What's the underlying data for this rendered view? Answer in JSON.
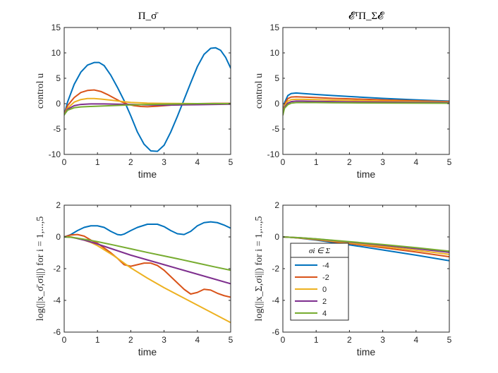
{
  "chart_data": [
    {
      "type": "line",
      "title": "Π_σ̄",
      "xlabel": "time",
      "ylabel": "control u",
      "xlim": [
        0,
        5
      ],
      "ylim": [
        -10,
        15
      ],
      "xticks": [
        0,
        1,
        2,
        3,
        4,
        5
      ],
      "yticks": [
        -10,
        -5,
        0,
        5,
        10,
        15
      ],
      "series": [
        {
          "name": "-4",
          "color": "#0072BD",
          "x": [
            0,
            0.1,
            0.3,
            0.5,
            0.7,
            0.9,
            1.05,
            1.2,
            1.4,
            1.6,
            1.8,
            2.0,
            2.2,
            2.4,
            2.6,
            2.8,
            3.0,
            3.2,
            3.4,
            3.6,
            3.8,
            4.0,
            4.2,
            4.4,
            4.55,
            4.7,
            4.85,
            5.0
          ],
          "y": [
            -2.2,
            0.3,
            3.8,
            6.2,
            7.6,
            8.1,
            8.1,
            7.5,
            5.6,
            3.2,
            0.6,
            -2.4,
            -5.6,
            -8.0,
            -9.3,
            -9.4,
            -8.2,
            -5.6,
            -2.5,
            0.8,
            4.1,
            7.3,
            9.7,
            10.9,
            11.0,
            10.5,
            9.1,
            7.0
          ]
        },
        {
          "name": "-2",
          "color": "#D95319",
          "x": [
            0,
            0.1,
            0.3,
            0.5,
            0.7,
            0.9,
            1.1,
            1.3,
            1.5,
            1.7,
            1.9,
            2.1,
            2.3,
            2.5,
            2.8,
            3.1,
            3.5,
            4.0,
            4.5,
            5.0
          ],
          "y": [
            -2.2,
            -0.4,
            1.2,
            2.2,
            2.6,
            2.7,
            2.4,
            1.8,
            1.1,
            0.4,
            -0.1,
            -0.4,
            -0.55,
            -0.6,
            -0.5,
            -0.35,
            -0.15,
            0.0,
            0.05,
            0.05
          ]
        },
        {
          "name": "0",
          "color": "#EDB120",
          "x": [
            0,
            0.1,
            0.3,
            0.5,
            0.7,
            0.9,
            1.1,
            1.4,
            1.7,
            2.0,
            2.5,
            3.0,
            4.0,
            5.0
          ],
          "y": [
            -2.2,
            -0.9,
            0.3,
            0.8,
            1.0,
            1.0,
            0.9,
            0.7,
            0.45,
            0.25,
            0.1,
            0.05,
            0.0,
            0.0
          ]
        },
        {
          "name": "2",
          "color": "#7E2F8E",
          "x": [
            0,
            0.1,
            0.3,
            0.5,
            0.8,
            1.2,
            1.6,
            2.0,
            2.5,
            3.0,
            3.5,
            4.0,
            4.5,
            5.0
          ],
          "y": [
            -2.2,
            -1.1,
            -0.4,
            -0.15,
            -0.05,
            -0.05,
            -0.1,
            -0.15,
            -0.25,
            -0.3,
            -0.25,
            -0.2,
            -0.15,
            -0.1
          ]
        },
        {
          "name": "4",
          "color": "#77AC30",
          "x": [
            0,
            0.1,
            0.3,
            0.5,
            0.8,
            1.2,
            1.6,
            2.0,
            2.5,
            3.0,
            3.5,
            4.0,
            4.5,
            5.0
          ],
          "y": [
            -2.2,
            -1.3,
            -0.8,
            -0.65,
            -0.55,
            -0.45,
            -0.35,
            -0.25,
            -0.15,
            -0.1,
            -0.05,
            0.0,
            0.0,
            0.0
          ]
        }
      ]
    },
    {
      "type": "line",
      "title": "𝓔ᵀΠ_Σ𝓔",
      "xlabel": "time",
      "ylabel": "control u",
      "xlim": [
        0,
        5
      ],
      "ylim": [
        -10,
        15
      ],
      "xticks": [
        0,
        1,
        2,
        3,
        4,
        5
      ],
      "yticks": [
        -10,
        -5,
        0,
        5,
        10,
        15
      ],
      "series": [
        {
          "name": "-4",
          "color": "#0072BD",
          "x": [
            0,
            0.05,
            0.15,
            0.25,
            0.4,
            0.6,
            1.0,
            1.5,
            2.0,
            3.0,
            4.0,
            5.0
          ],
          "y": [
            -2.2,
            0.2,
            1.6,
            2.0,
            2.1,
            2.0,
            1.8,
            1.6,
            1.4,
            1.05,
            0.75,
            0.5
          ]
        },
        {
          "name": "-2",
          "color": "#D95319",
          "x": [
            0,
            0.05,
            0.15,
            0.25,
            0.4,
            0.6,
            1.0,
            1.5,
            2.0,
            3.0,
            4.0,
            5.0
          ],
          "y": [
            -2.2,
            -0.1,
            1.0,
            1.3,
            1.35,
            1.3,
            1.2,
            1.05,
            0.95,
            0.75,
            0.55,
            0.4
          ]
        },
        {
          "name": "0",
          "color": "#EDB120",
          "x": [
            0,
            0.05,
            0.15,
            0.25,
            0.4,
            0.6,
            1.0,
            1.5,
            2.0,
            3.0,
            4.0,
            5.0
          ],
          "y": [
            -2.2,
            -0.4,
            0.5,
            0.8,
            0.85,
            0.85,
            0.8,
            0.7,
            0.65,
            0.5,
            0.4,
            0.3
          ]
        },
        {
          "name": "2",
          "color": "#7E2F8E",
          "x": [
            0,
            0.05,
            0.15,
            0.25,
            0.4,
            0.6,
            1.0,
            1.5,
            2.0,
            3.0,
            4.0,
            5.0
          ],
          "y": [
            -2.2,
            -0.7,
            0.1,
            0.4,
            0.5,
            0.5,
            0.45,
            0.4,
            0.35,
            0.3,
            0.25,
            0.2
          ]
        },
        {
          "name": "4",
          "color": "#77AC30",
          "x": [
            0,
            0.05,
            0.15,
            0.25,
            0.4,
            0.6,
            1.0,
            1.5,
            2.0,
            3.0,
            4.0,
            5.0
          ],
          "y": [
            -2.2,
            -0.9,
            -0.2,
            0.1,
            0.2,
            0.2,
            0.2,
            0.18,
            0.15,
            0.12,
            0.1,
            0.08
          ]
        }
      ]
    },
    {
      "type": "line",
      "title": "",
      "xlabel": "time",
      "ylabel": "log(||x_σ̄,σi||) for i = 1,...,5",
      "xlim": [
        0,
        5
      ],
      "ylim": [
        -6,
        2
      ],
      "xticks": [
        0,
        1,
        2,
        3,
        4,
        5
      ],
      "yticks": [
        -6,
        -4,
        -2,
        0,
        2
      ],
      "series": [
        {
          "name": "-4",
          "color": "#0072BD",
          "x": [
            0,
            0.2,
            0.4,
            0.6,
            0.8,
            1.0,
            1.2,
            1.4,
            1.6,
            1.7,
            1.8,
            2.0,
            2.2,
            2.5,
            2.8,
            3.0,
            3.2,
            3.4,
            3.6,
            3.8,
            4.0,
            4.2,
            4.4,
            4.6,
            4.8,
            5.0
          ],
          "y": [
            0,
            0.15,
            0.4,
            0.6,
            0.7,
            0.7,
            0.6,
            0.35,
            0.15,
            0.12,
            0.18,
            0.4,
            0.6,
            0.8,
            0.8,
            0.65,
            0.4,
            0.2,
            0.15,
            0.35,
            0.7,
            0.9,
            0.95,
            0.9,
            0.75,
            0.55
          ]
        },
        {
          "name": "-2",
          "color": "#D95319",
          "x": [
            0,
            0.2,
            0.4,
            0.6,
            0.8,
            1.0,
            1.2,
            1.4,
            1.6,
            1.8,
            2.0,
            2.2,
            2.4,
            2.6,
            2.8,
            3.0,
            3.2,
            3.4,
            3.6,
            3.8,
            4.0,
            4.2,
            4.4,
            4.6,
            4.8,
            5.0
          ],
          "y": [
            0,
            0.12,
            0.15,
            0.05,
            -0.2,
            -0.4,
            -0.7,
            -1.0,
            -1.35,
            -1.75,
            -1.85,
            -1.75,
            -1.65,
            -1.65,
            -1.8,
            -2.1,
            -2.5,
            -2.9,
            -3.3,
            -3.6,
            -3.5,
            -3.3,
            -3.35,
            -3.55,
            -3.7,
            -3.8
          ]
        },
        {
          "name": "0",
          "color": "#EDB120",
          "x": [
            0,
            0.2,
            0.4,
            0.6,
            0.8,
            1.0,
            1.5,
            2.0,
            2.5,
            3.0,
            3.5,
            4.0,
            4.5,
            5.0
          ],
          "y": [
            0,
            0.0,
            -0.1,
            -0.2,
            -0.35,
            -0.55,
            -1.2,
            -1.95,
            -2.6,
            -3.2,
            -3.75,
            -4.3,
            -4.85,
            -5.4
          ]
        },
        {
          "name": "2",
          "color": "#7E2F8E",
          "x": [
            0,
            0.2,
            0.4,
            0.6,
            0.8,
            1.0,
            1.5,
            2.0,
            2.5,
            3.0,
            3.5,
            4.0,
            4.5,
            5.0
          ],
          "y": [
            0,
            -0.02,
            -0.1,
            -0.2,
            -0.32,
            -0.45,
            -0.8,
            -1.15,
            -1.45,
            -1.75,
            -2.05,
            -2.35,
            -2.65,
            -2.95
          ]
        },
        {
          "name": "4",
          "color": "#77AC30",
          "x": [
            0,
            0.2,
            0.4,
            0.6,
            0.8,
            1.0,
            1.5,
            2.0,
            2.5,
            3.0,
            3.5,
            4.0,
            4.5,
            5.0
          ],
          "y": [
            0,
            -0.02,
            -0.08,
            -0.15,
            -0.22,
            -0.3,
            -0.52,
            -0.75,
            -0.98,
            -1.2,
            -1.42,
            -1.65,
            -1.88,
            -2.1
          ]
        }
      ]
    },
    {
      "type": "line",
      "title": "",
      "xlabel": "time",
      "ylabel": "log(||x_Σ,σi||) for i = 1,...,5",
      "xlim": [
        0,
        5
      ],
      "ylim": [
        -6,
        2
      ],
      "xticks": [
        0,
        1,
        2,
        3,
        4,
        5
      ],
      "yticks": [
        -6,
        -4,
        -2,
        0,
        2
      ],
      "legend": {
        "title": "σi ∈ Σ",
        "location": "lower-left"
      },
      "series": [
        {
          "name": "-4",
          "color": "#0072BD",
          "x": [
            0,
            0.2,
            0.5,
            1.0,
            2.0,
            3.0,
            4.0,
            5.0
          ],
          "y": [
            0,
            -0.02,
            -0.08,
            -0.2,
            -0.5,
            -0.82,
            -1.15,
            -1.5
          ]
        },
        {
          "name": "-2",
          "color": "#D95319",
          "x": [
            0,
            0.2,
            0.5,
            1.0,
            2.0,
            3.0,
            4.0,
            5.0
          ],
          "y": [
            0,
            -0.02,
            -0.07,
            -0.17,
            -0.42,
            -0.68,
            -0.95,
            -1.25
          ]
        },
        {
          "name": "0",
          "color": "#EDB120",
          "x": [
            0,
            0.2,
            0.5,
            1.0,
            2.0,
            3.0,
            4.0,
            5.0
          ],
          "y": [
            0,
            -0.02,
            -0.06,
            -0.15,
            -0.37,
            -0.6,
            -0.84,
            -1.1
          ]
        },
        {
          "name": "2",
          "color": "#7E2F8E",
          "x": [
            0,
            0.2,
            0.5,
            1.0,
            2.0,
            3.0,
            4.0,
            5.0
          ],
          "y": [
            0,
            -0.02,
            -0.05,
            -0.13,
            -0.32,
            -0.52,
            -0.74,
            -0.97
          ]
        },
        {
          "name": "4",
          "color": "#77AC30",
          "x": [
            0,
            0.2,
            0.5,
            1.0,
            2.0,
            3.0,
            4.0,
            5.0
          ],
          "y": [
            0,
            -0.02,
            -0.05,
            -0.12,
            -0.3,
            -0.48,
            -0.68,
            -0.9
          ]
        }
      ]
    }
  ]
}
